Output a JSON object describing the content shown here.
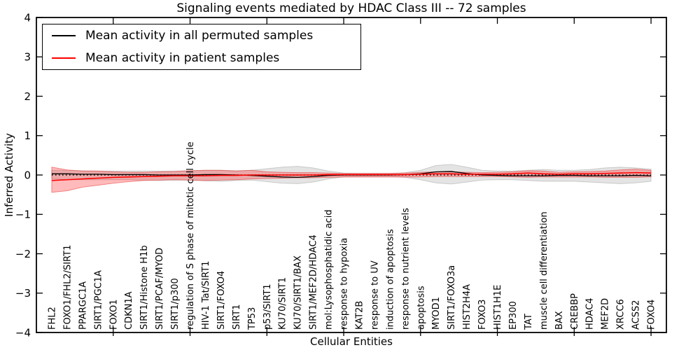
{
  "figure": {
    "kind": "matplotlib-line-plot"
  },
  "chart_data": {
    "type": "line",
    "title": "Signaling events mediated by HDAC Class III -- 72 samples",
    "xlabel": "Cellular Entities",
    "ylabel": "Inferred Activity",
    "ylim": [
      -4,
      4
    ],
    "ytick_labels": [
      "4",
      "3",
      "2",
      "1",
      "0",
      "−1",
      "−2",
      "−3",
      "−4"
    ],
    "ytick_values": [
      4,
      3,
      2,
      1,
      0,
      -1,
      -2,
      -3,
      -4
    ],
    "xtick_every": 5,
    "grid": false,
    "legend_position": "upper left",
    "zero_line": {
      "style": "dotted",
      "color": "#000000",
      "y": 0.0
    },
    "categories": [
      "FHL2",
      "FOXO1/FHL2/SIRT1",
      "PPARGC1A",
      "SIRT1/PGC1A",
      "FOXO1",
      "CDKN1A",
      "SIRT1/Histone H1b",
      "SIRT1/PCAF/MYOD",
      "SIRT1/p300",
      "regulation of S phase of mitotic cell cycle",
      "HIV-1 Tat/SIRT1",
      "SIRT1/FOXO4",
      "SIRT1",
      "TP53",
      "p53/SIRT1",
      "KU70/SIRT1",
      "KU70/SIRT1/BAX",
      "SIRT1/MEF2D/HDAC4",
      "mol:Lysophosphatidic acid",
      "response to hypoxia",
      "KAT2B",
      "response to UV",
      "induction of apoptosis",
      "response to nutrient levels",
      "apoptosis",
      "MYOD1",
      "SIRT1/FOXO3a",
      "HIST2H4A",
      "FOXO3",
      "HIST1H1E",
      "EP300",
      "TAT",
      "muscle cell differentiation",
      "BAX",
      "CREBBP",
      "HDAC4",
      "MEF2D",
      "XRCC6",
      "ACSS2",
      "FOXO4"
    ],
    "series": [
      {
        "name": "Mean activity in all permuted samples",
        "color": "#000000",
        "band_fill": "rgba(130,130,130,0.22)",
        "band_edge": "rgba(130,130,130,0.35)",
        "values": [
          0.03,
          0.03,
          0.02,
          0.02,
          0.01,
          0.01,
          0.01,
          0.0,
          0.0,
          0.0,
          0.01,
          0.01,
          0.0,
          -0.01,
          -0.03,
          -0.05,
          -0.06,
          -0.04,
          -0.01,
          0.0,
          0.0,
          0.0,
          0.0,
          0.01,
          0.03,
          0.08,
          0.09,
          0.04,
          0.0,
          -0.01,
          -0.02,
          -0.02,
          -0.02,
          -0.01,
          -0.01,
          -0.02,
          -0.02,
          -0.02,
          -0.01,
          -0.02
        ],
        "band_upper": [
          0.12,
          0.12,
          0.11,
          0.1,
          0.1,
          0.1,
          0.1,
          0.1,
          0.1,
          0.11,
          0.12,
          0.12,
          0.11,
          0.12,
          0.16,
          0.2,
          0.22,
          0.18,
          0.1,
          0.05,
          0.04,
          0.04,
          0.04,
          0.06,
          0.12,
          0.24,
          0.27,
          0.2,
          0.12,
          0.1,
          0.1,
          0.12,
          0.14,
          0.12,
          0.12,
          0.14,
          0.18,
          0.2,
          0.18,
          0.15
        ],
        "band_lower": [
          -0.1,
          -0.12,
          -0.12,
          -0.12,
          -0.12,
          -0.12,
          -0.13,
          -0.14,
          -0.13,
          -0.13,
          -0.15,
          -0.16,
          -0.14,
          -0.13,
          -0.17,
          -0.21,
          -0.22,
          -0.18,
          -0.1,
          -0.05,
          -0.04,
          -0.04,
          -0.04,
          -0.06,
          -0.12,
          -0.2,
          -0.23,
          -0.18,
          -0.13,
          -0.12,
          -0.12,
          -0.14,
          -0.16,
          -0.16,
          -0.16,
          -0.18,
          -0.2,
          -0.22,
          -0.2,
          -0.16
        ]
      },
      {
        "name": "Mean activity in patient samples",
        "color": "#ff0000",
        "band_fill": "rgba(255,30,30,0.30)",
        "band_edge": "rgba(230,40,40,0.50)",
        "values": [
          -0.14,
          -0.12,
          -0.1,
          -0.08,
          -0.06,
          -0.05,
          -0.04,
          -0.03,
          -0.02,
          -0.02,
          -0.02,
          -0.01,
          -0.01,
          0.0,
          0.0,
          0.0,
          0.0,
          0.0,
          0.01,
          0.01,
          0.01,
          0.01,
          0.01,
          0.01,
          0.02,
          0.03,
          0.03,
          0.02,
          0.02,
          0.02,
          0.03,
          0.05,
          0.03,
          0.02,
          0.03,
          0.03,
          0.04,
          0.05,
          0.06,
          0.05
        ],
        "band_upper": [
          0.2,
          0.13,
          0.1,
          0.1,
          0.08,
          0.07,
          0.07,
          0.08,
          0.09,
          0.11,
          0.12,
          0.12,
          0.1,
          0.12,
          0.08,
          0.07,
          0.06,
          0.06,
          0.05,
          0.04,
          0.04,
          0.04,
          0.04,
          0.05,
          0.07,
          0.08,
          0.08,
          0.07,
          0.06,
          0.07,
          0.08,
          0.11,
          0.1,
          0.07,
          0.08,
          0.09,
          0.1,
          0.13,
          0.15,
          0.12
        ],
        "band_lower": [
          -0.44,
          -0.4,
          -0.31,
          -0.26,
          -0.21,
          -0.17,
          -0.14,
          -0.13,
          -0.12,
          -0.13,
          -0.14,
          -0.13,
          -0.12,
          -0.1,
          -0.09,
          -0.08,
          -0.07,
          -0.07,
          -0.06,
          -0.05,
          -0.05,
          -0.05,
          -0.05,
          -0.05,
          -0.05,
          -0.04,
          -0.04,
          -0.04,
          -0.04,
          -0.04,
          -0.05,
          -0.06,
          -0.05,
          -0.05,
          -0.05,
          -0.05,
          -0.06,
          -0.06,
          -0.06,
          -0.05
        ]
      }
    ]
  }
}
